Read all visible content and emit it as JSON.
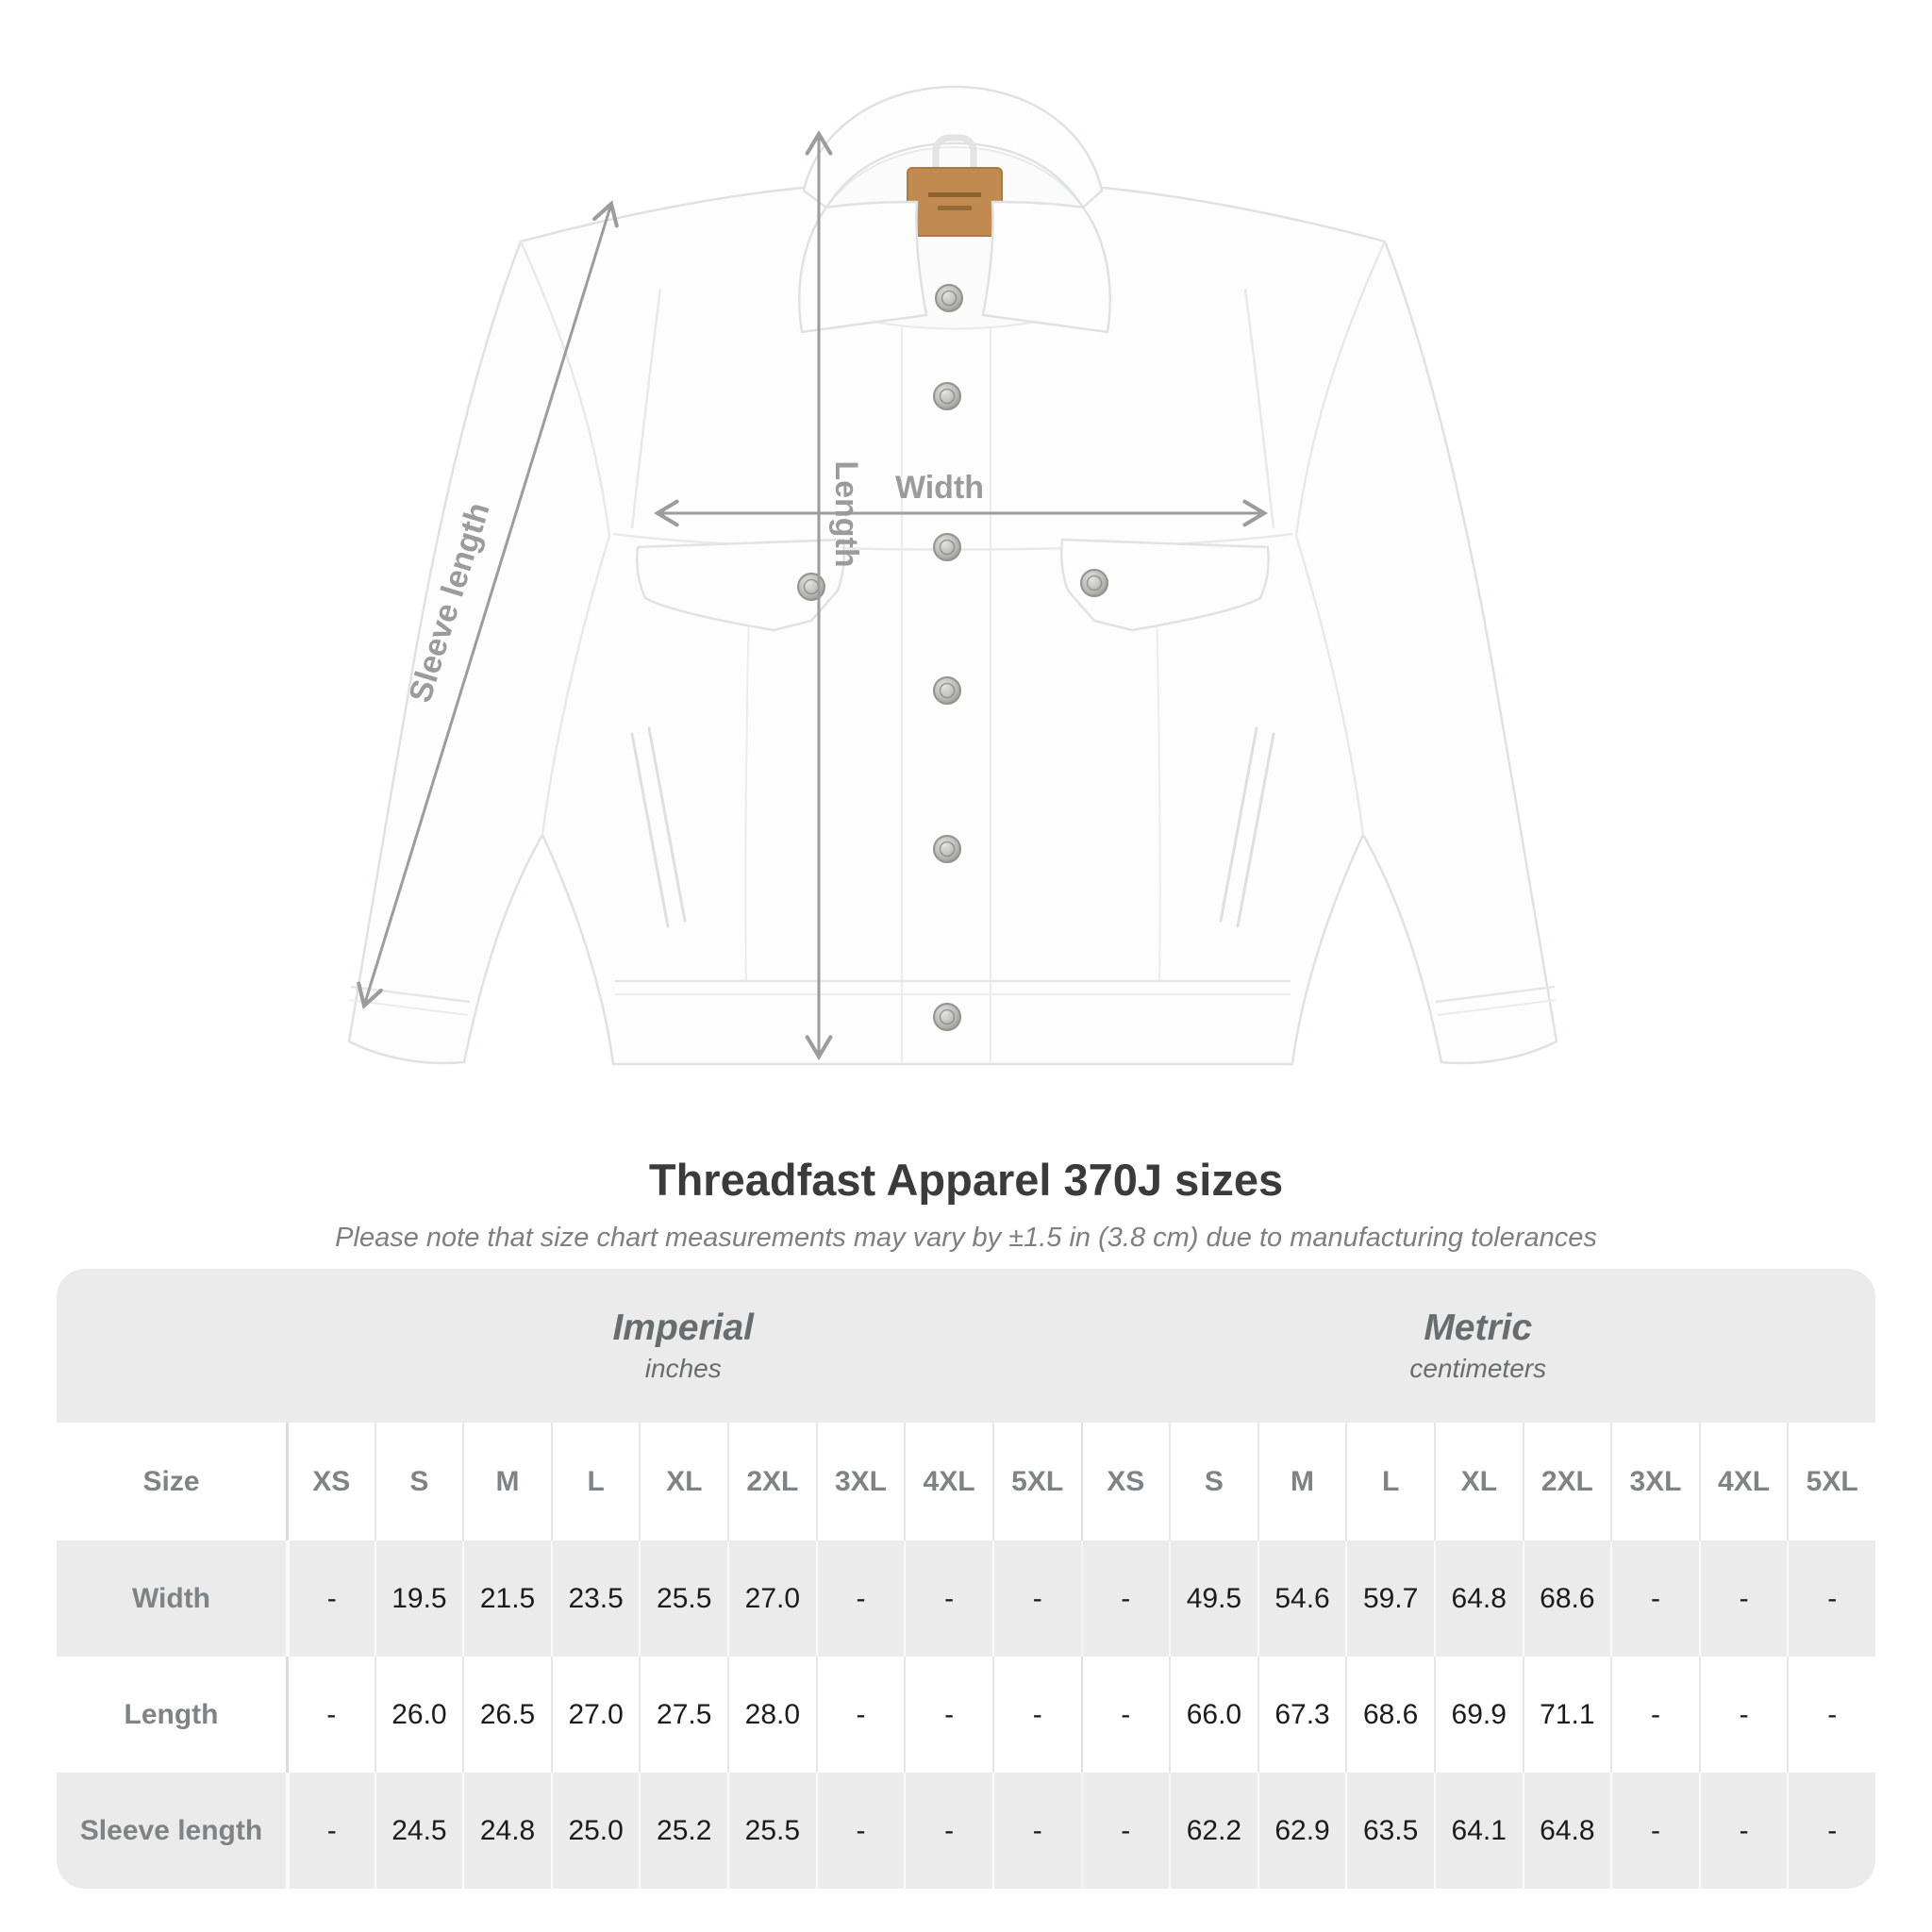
{
  "diagram": {
    "length_label": "Length",
    "width_label": "Width",
    "sleeve_length_label": "Sleeve length",
    "arrow_color": "#9c9c9c",
    "care_label_color": "#c18a50"
  },
  "title": "Threadfast Apparel 370J sizes",
  "subtitle": "Please note that size chart measurements may vary by ±1.5 in (3.8 cm) due to manufacturing tolerances",
  "chart_data": {
    "type": "table",
    "title": "Threadfast Apparel 370J sizes",
    "unit_groups": [
      {
        "label": "Imperial",
        "sublabel": "inches"
      },
      {
        "label": "Metric",
        "sublabel": "centimeters"
      }
    ],
    "corner_header": "Size",
    "sizes": [
      "XS",
      "S",
      "M",
      "L",
      "XL",
      "2XL",
      "3XL",
      "4XL",
      "5XL"
    ],
    "rows": [
      {
        "label": "Width",
        "imperial": [
          "-",
          "19.5",
          "21.5",
          "23.5",
          "25.5",
          "27.0",
          "-",
          "-",
          "-"
        ],
        "metric": [
          "-",
          "49.5",
          "54.6",
          "59.7",
          "64.8",
          "68.6",
          "-",
          "-",
          "-"
        ]
      },
      {
        "label": "Length",
        "imperial": [
          "-",
          "26.0",
          "26.5",
          "27.0",
          "27.5",
          "28.0",
          "-",
          "-",
          "-"
        ],
        "metric": [
          "-",
          "66.0",
          "67.3",
          "68.6",
          "69.9",
          "71.1",
          "-",
          "-",
          "-"
        ]
      },
      {
        "label": "Sleeve length",
        "imperial": [
          "-",
          "24.5",
          "24.8",
          "25.0",
          "25.2",
          "25.5",
          "-",
          "-",
          "-"
        ],
        "metric": [
          "-",
          "62.2",
          "62.9",
          "63.5",
          "64.1",
          "64.8",
          "-",
          "-",
          "-"
        ]
      }
    ]
  },
  "colors": {
    "band_bg": "#ebebeb",
    "alt_row_bg": "#ebebeb",
    "header_text": "#7e8486",
    "value_text": "#1c1c1c",
    "title_text": "#3b3b3b",
    "subtitle_text": "#7f7f7f",
    "arrow_gray": "#9c9c9c"
  }
}
